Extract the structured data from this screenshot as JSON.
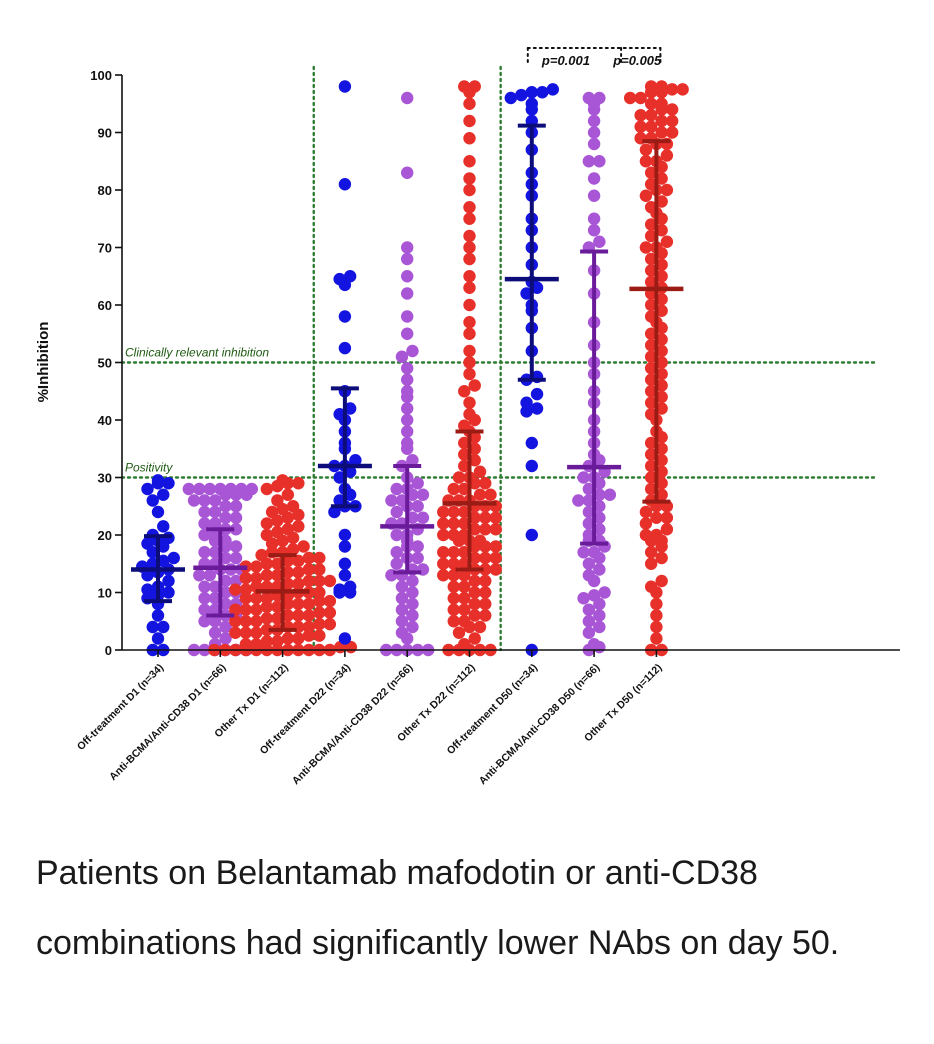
{
  "chart_data": {
    "type": "scatter",
    "ylabel": "%Inhibition",
    "ylim": [
      0,
      100
    ],
    "yticks": [
      0,
      10,
      20,
      30,
      40,
      50,
      60,
      70,
      80,
      90,
      100
    ],
    "categories": [
      "Off-treatment D1 (n=34)",
      "Anti-BCMA/Anti-CD38 D1 (n=66)",
      "Other Tx D1 (n=112)",
      "Off-treatment D22 (n=34)",
      "Anti-BCMA/Anti-CD38 D22 (n=66)",
      "Other Tx D22 (n=112)",
      "Off-treatment D50 (n=34)",
      "Anti-BCMA/Anti-CD38 D50 (n=66)",
      "Other Tx D50 (n=112)"
    ],
    "colors": {
      "off": "#1414e0",
      "offbar": "#0d0d7a",
      "anti": "#a855d6",
      "antibar": "#6a1b9a",
      "other": "#e8302a",
      "otherbar": "#9b1b15",
      "guide": "#2e7d32"
    },
    "groups": [
      {
        "color_key": "off",
        "median": 14,
        "q1": 8.5,
        "q3": 19.8,
        "points": [
          0,
          0,
          2,
          4,
          4,
          6,
          8,
          9,
          9.5,
          10,
          10.5,
          11,
          12,
          13,
          13.5,
          14,
          14.5,
          15,
          15.5,
          16,
          17,
          18,
          18.5,
          19,
          19.5,
          20,
          21.5,
          24,
          26,
          27,
          28,
          29,
          29,
          29.5
        ]
      },
      {
        "color_key": "anti",
        "median": 14.3,
        "q1": 6,
        "q3": 21,
        "points": [
          0,
          0,
          0,
          0,
          0,
          0,
          1,
          2,
          3,
          4,
          5,
          5,
          6,
          6,
          7,
          7,
          8,
          8,
          9,
          9,
          10,
          10,
          11,
          11,
          12,
          12,
          13,
          13,
          14,
          14,
          14,
          15,
          15,
          16,
          16,
          17,
          17,
          18,
          18,
          19,
          19,
          20,
          20,
          21,
          21,
          22,
          22,
          23,
          23,
          24,
          24,
          25,
          25,
          26,
          26,
          26,
          27,
          27,
          27,
          28,
          28,
          28,
          28,
          28,
          28,
          28
        ]
      },
      {
        "color_key": "other",
        "median": 10.2,
        "q1": 3.5,
        "q3": 16.5,
        "points": [
          0,
          0,
          0,
          0,
          0,
          0,
          0,
          0,
          0,
          0,
          0,
          0,
          0.5,
          0.5,
          1,
          1,
          1.5,
          1.5,
          2,
          2,
          2.5,
          2.5,
          3,
          3,
          3,
          3.5,
          3.5,
          4,
          4,
          4,
          4.5,
          4.5,
          5,
          5,
          5,
          5.5,
          5.5,
          6,
          6,
          6,
          6.5,
          6.5,
          7,
          7,
          7,
          7.5,
          7.5,
          8,
          8,
          8,
          8.5,
          8.5,
          9,
          9,
          9,
          9.5,
          9.5,
          10,
          10,
          10,
          10.5,
          10.5,
          11,
          11,
          11,
          11.5,
          11.5,
          12,
          12,
          12,
          12.5,
          12.5,
          13,
          13,
          13.5,
          13.5,
          14,
          14,
          14.5,
          14.5,
          15,
          15,
          15.5,
          15.5,
          16,
          16,
          16.5,
          17,
          17,
          17.5,
          18,
          18.5,
          19,
          19.5,
          20,
          20.5,
          21,
          21.5,
          22,
          22.5,
          23,
          23.5,
          24,
          24.5,
          25,
          26,
          27,
          28,
          28.5,
          29,
          29,
          29.5
        ]
      },
      {
        "color_key": "off",
        "median": 32,
        "q1": 25,
        "q3": 45.5,
        "points": [
          2,
          10,
          10,
          10.5,
          11,
          13,
          15,
          18,
          20,
          24,
          25,
          25,
          26,
          27,
          28,
          30,
          31,
          32,
          32,
          33,
          35,
          36,
          38,
          40,
          41,
          42,
          45,
          52.5,
          58,
          63.5,
          64.5,
          65,
          81,
          98
        ]
      },
      {
        "color_key": "anti",
        "median": 21.5,
        "q1": 13.5,
        "q3": 32,
        "points": [
          0,
          0,
          0,
          0,
          0,
          2,
          3,
          4,
          5,
          6,
          7,
          8,
          9,
          10,
          11,
          12,
          13,
          13,
          14,
          14,
          15,
          16,
          16,
          17,
          18,
          18,
          19,
          20,
          20,
          21,
          22,
          22,
          23,
          23,
          24,
          25,
          25,
          26,
          26,
          27,
          27,
          28,
          28,
          29,
          30,
          32,
          33,
          35,
          36,
          38,
          40,
          42,
          44,
          45,
          47,
          49,
          51,
          52,
          55,
          58,
          62,
          65,
          68,
          70,
          83,
          96
        ]
      },
      {
        "color_key": "other",
        "median": 25.5,
        "q1": 14,
        "q3": 38,
        "points": [
          0,
          0,
          0,
          0,
          0,
          1,
          2,
          3,
          4,
          4,
          5,
          5,
          6,
          6,
          7,
          7,
          8,
          8,
          9,
          9,
          10,
          10,
          11,
          11,
          12,
          12,
          13,
          13,
          13,
          14,
          14,
          14,
          15,
          15,
          15,
          16,
          16,
          16,
          17,
          17,
          17,
          18,
          18,
          18,
          19,
          19,
          19,
          20,
          20,
          20,
          21,
          21,
          21,
          22,
          22,
          22,
          23,
          23,
          23,
          24,
          24,
          24,
          25,
          25,
          25,
          26,
          26,
          26,
          27,
          27,
          28,
          28,
          29,
          29,
          30,
          30,
          31,
          32,
          33,
          34,
          35,
          36,
          37,
          38,
          39,
          40,
          41,
          43,
          45,
          46,
          48,
          50,
          52,
          55,
          57,
          60,
          63,
          65,
          68,
          70,
          72,
          75,
          77,
          80,
          82,
          85,
          89,
          92,
          95,
          97,
          98,
          98
        ]
      },
      {
        "color_key": "off",
        "median": 64.5,
        "q1": 47,
        "q3": 91.2,
        "points": [
          0,
          20,
          32,
          36,
          41.5,
          42,
          43,
          44.5,
          47,
          47.5,
          52,
          56,
          59,
          60,
          62,
          63,
          64,
          67,
          70,
          73,
          75,
          79,
          81,
          83,
          87,
          90,
          92,
          94,
          95,
          96,
          96.5,
          97,
          97,
          97.5
        ]
      },
      {
        "color_key": "anti",
        "median": 31.8,
        "q1": 18.5,
        "q3": 69.3,
        "points": [
          0,
          0.5,
          1,
          3,
          4,
          5,
          6,
          7,
          8,
          9,
          9.5,
          10,
          12,
          13,
          14,
          15,
          16,
          17,
          17,
          18,
          19,
          19,
          20,
          21,
          22,
          23,
          24,
          25,
          26,
          26,
          27,
          27,
          28,
          29,
          30,
          30,
          31,
          32,
          33,
          34,
          36,
          38,
          40,
          43,
          45,
          48,
          50,
          53,
          57,
          62,
          66,
          70,
          71,
          73,
          75,
          79,
          82,
          85,
          85,
          88,
          90,
          92,
          94,
          95,
          96,
          96
        ]
      },
      {
        "color_key": "other",
        "median": 62.8,
        "q1": 25.8,
        "q3": 88.5,
        "points": [
          0,
          0,
          2,
          4,
          6,
          8,
          10,
          11,
          12,
          15,
          16,
          17,
          18,
          19,
          19,
          20,
          20,
          21,
          22,
          23,
          23,
          24,
          25,
          25,
          26,
          27,
          28,
          29,
          30,
          31,
          32,
          33,
          34,
          35,
          36,
          37,
          38,
          40,
          41,
          42,
          43,
          44,
          45,
          46,
          47,
          48,
          49,
          50,
          51,
          52,
          53,
          54,
          55,
          56,
          57,
          58,
          59,
          60,
          61,
          62,
          63,
          64,
          65,
          66,
          67,
          68,
          69,
          70,
          70,
          71,
          72,
          73,
          74,
          75,
          76,
          77,
          78,
          79,
          80,
          80,
          81,
          82,
          83,
          84,
          85,
          85,
          86,
          87,
          88,
          88,
          89,
          89,
          90,
          90,
          91,
          91,
          92,
          92,
          93,
          93,
          94,
          94,
          95,
          95,
          96,
          96,
          97,
          97,
          97.5,
          97.5,
          98,
          98
        ]
      }
    ],
    "guides": [
      {
        "label": "Clinically relevant inhibition",
        "y": 50
      },
      {
        "label": "Positivity",
        "y": 30
      }
    ],
    "significance": [
      {
        "label": "p=0.001",
        "from": 6,
        "to": 7
      },
      {
        "label": "p=0.005",
        "from": 7,
        "to": 8
      }
    ]
  },
  "caption": "Patients on Belantamab mafodotin or anti-CD38 combinations had significantly lower NAbs on day 50."
}
